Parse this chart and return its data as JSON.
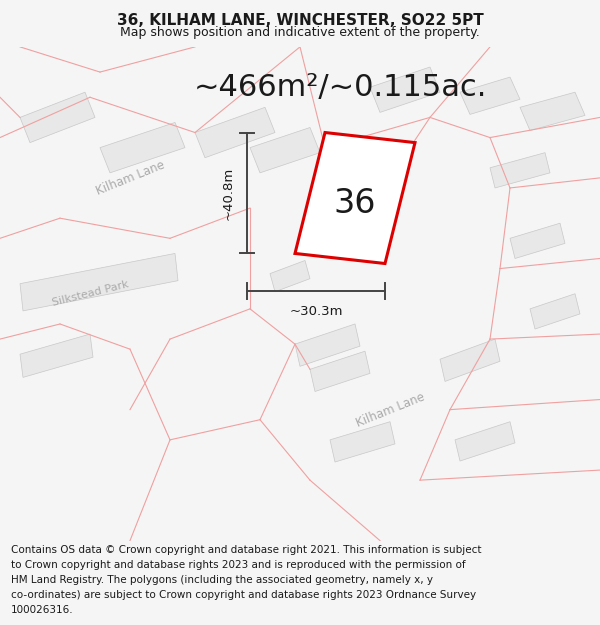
{
  "title_line1": "36, KILHAM LANE, WINCHESTER, SO22 5PT",
  "title_line2": "Map shows position and indicative extent of the property.",
  "area_text": "~466m²/~0.115ac.",
  "label_36": "36",
  "dim_height": "~40.8m",
  "dim_width": "~30.3m",
  "footer_lines": [
    "Contains OS data © Crown copyright and database right 2021. This information is subject",
    "to Crown copyright and database rights 2023 and is reproduced with the permission of",
    "HM Land Registry. The polygons (including the associated geometry, namely x, y",
    "co-ordinates) are subject to Crown copyright and database rights 2023 Ordnance Survey",
    "100026316."
  ],
  "bg_color": "#f5f5f5",
  "map_bg": "#ffffff",
  "bldg_fill": "#e8e8e8",
  "bldg_edge": "#e0b0b0",
  "prop_edge": "#dd0000",
  "dim_color": "#444444",
  "text_color": "#1a1a1a",
  "road_label_color": "#aaaaaa",
  "pink_line": "#f0a0a0",
  "title_fs": 11,
  "subtitle_fs": 9,
  "area_fs": 22,
  "label_fs": 24,
  "dim_fs": 9.5,
  "footer_fs": 7.5,
  "road_label_fs": 8.5
}
